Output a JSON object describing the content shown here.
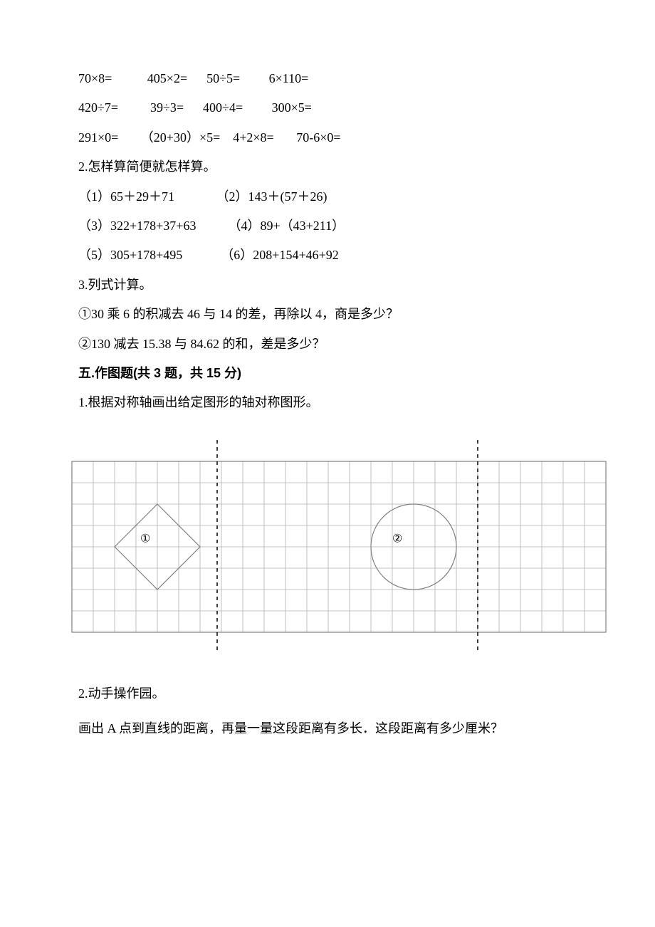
{
  "sectionArith": {
    "row1": "70×8=           405×2=      50÷5=         6×110=",
    "row2": "420÷7=          39÷3=      400÷4=         300×5=",
    "row3": "291×0=       （20+30）×5=    4+2×8=       70-6×0="
  },
  "q2": {
    "title": "2.怎样算简便就怎样算。",
    "p1": "（1）65＋29＋71             （2）143＋(57＋26)",
    "p2": "（3）322+178+37+63          （4）89+（43+211）",
    "p3": "（5）305+178+495            （6）208+154+46+92"
  },
  "q3": {
    "title": "3.列式计算。",
    "p1": "①30 乘 6 的积减去 46 与 14 的差，再除以 4，商是多少？",
    "p2": "②130 减去 15.38 与 84.62 的和，差是多少？"
  },
  "section5": {
    "title": "五.作图题(共 3 题，共 15 分)",
    "q1": "1.根据对称轴画出给定图形的轴对称图形。",
    "q2": "2.动手操作园。",
    "q2desc": "画出 A 点到直线的距离，再量一量这段距离有多长．这段距离有多少厘米？"
  },
  "figure": {
    "rows": 8,
    "cols": 25,
    "cell_size": 30,
    "border_color": "#808080",
    "grid_color": "#b0b0b0",
    "grid_stroke": 0.8,
    "border_stroke": 1.2,
    "axis_color": "#000000",
    "axis_dash": "5,5",
    "axis1_x_col": 6.8,
    "axis2_x_col": 19.0,
    "diamond": {
      "cx_col": 4.0,
      "cy_row": 4.0,
      "half_w_cols": 2.0,
      "half_h_rows": 2.0,
      "stroke": "#808080",
      "stroke_width": 1.2
    },
    "circle": {
      "cx_col": 16.0,
      "cy_row": 4.0,
      "r_cols": 2.0,
      "stroke": "#808080",
      "stroke_width": 1.2
    },
    "labels": {
      "l1": {
        "text": "①",
        "col": 3.2,
        "row": 3.6
      },
      "l2": {
        "text": "②",
        "col": 15.0,
        "row": 3.6
      }
    },
    "label_fontsize": 16,
    "label_color": "#000000"
  }
}
